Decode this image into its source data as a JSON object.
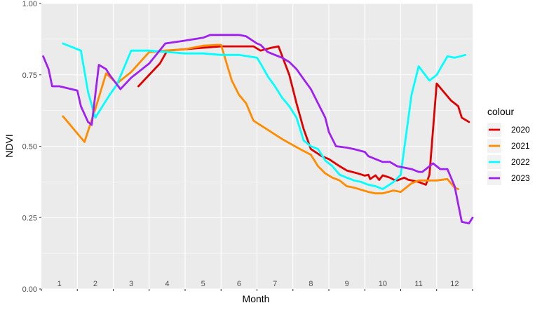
{
  "chart_data": {
    "type": "line",
    "xlabel": "Month",
    "ylabel": "NDVI",
    "xlim": [
      0.5,
      12.5
    ],
    "ylim": [
      0,
      1
    ],
    "x_ticks": [
      "1",
      "2",
      "3",
      "4",
      "5",
      "6",
      "7",
      "8",
      "9",
      "10",
      "11",
      "12"
    ],
    "y_ticks": [
      "0.00",
      "0.25",
      "0.50",
      "0.75",
      "1.00"
    ],
    "legend": {
      "title": "colour",
      "position": "right"
    },
    "grid": true,
    "series": [
      {
        "name": "2020",
        "color": "#E00000",
        "x": [
          3.2,
          3.8,
          4.0,
          5.0,
          5.5,
          6.0,
          6.3,
          6.4,
          6.6,
          6.9,
          7.1,
          7.4,
          7.5,
          7.6,
          7.8,
          8.0,
          8.3,
          8.5,
          8.8,
          9.0,
          9.3,
          9.5,
          9.6,
          9.65,
          9.8,
          9.9,
          10.0,
          10.2,
          10.3,
          10.4,
          10.6,
          10.7,
          11.0,
          11.2,
          11.3,
          11.5,
          11.7,
          11.9,
          12.0,
          12.1,
          12.2,
          12.4
        ],
        "y": [
          0.71,
          0.79,
          0.835,
          0.845,
          0.85,
          0.85,
          0.85,
          0.85,
          0.835,
          0.845,
          0.85,
          0.75,
          0.7,
          0.65,
          0.56,
          0.49,
          0.465,
          0.455,
          0.43,
          0.415,
          0.405,
          0.397,
          0.4,
          0.385,
          0.398,
          0.382,
          0.398,
          0.39,
          0.383,
          0.38,
          0.39,
          0.383,
          0.375,
          0.365,
          0.4,
          0.72,
          0.69,
          0.66,
          0.65,
          0.64,
          0.6,
          0.585
        ]
      },
      {
        "name": "2021",
        "color": "#FF8C00",
        "x": [
          1.1,
          1.7,
          2.0,
          2.3,
          2.6,
          3.0,
          3.5,
          3.95,
          4.5,
          5.0,
          5.4,
          5.5,
          5.8,
          6.0,
          6.2,
          6.4,
          7.2,
          7.7,
          8.0,
          8.2,
          8.4,
          8.6,
          8.8,
          9.0,
          9.2,
          9.6,
          9.8,
          10.0,
          10.3,
          10.5,
          10.8,
          11.0,
          11.5,
          11.8,
          12.0,
          12.1
        ],
        "y": [
          0.605,
          0.515,
          0.63,
          0.755,
          0.72,
          0.76,
          0.83,
          0.835,
          0.84,
          0.852,
          0.855,
          0.855,
          0.73,
          0.68,
          0.65,
          0.59,
          0.525,
          0.49,
          0.47,
          0.43,
          0.405,
          0.39,
          0.38,
          0.36,
          0.355,
          0.34,
          0.335,
          0.335,
          0.345,
          0.34,
          0.37,
          0.38,
          0.38,
          0.385,
          0.355,
          0.35
        ]
      },
      {
        "name": "2022",
        "color": "#00FFFF",
        "x": [
          1.1,
          1.6,
          1.8,
          2.0,
          2.4,
          2.6,
          3.0,
          3.5,
          4.0,
          4.5,
          5.0,
          5.5,
          6.0,
          6.5,
          6.6,
          6.8,
          7.0,
          7.2,
          7.4,
          7.6,
          7.8,
          8.0,
          8.2,
          8.4,
          8.6,
          8.8,
          9.0,
          9.2,
          9.4,
          9.6,
          9.8,
          10.0,
          10.3,
          10.5,
          10.8,
          11.0,
          11.3,
          11.5,
          11.8,
          12.0,
          12.3
        ],
        "y": [
          0.86,
          0.835,
          0.69,
          0.6,
          0.68,
          0.715,
          0.835,
          0.835,
          0.83,
          0.825,
          0.825,
          0.82,
          0.82,
          0.81,
          0.79,
          0.745,
          0.71,
          0.67,
          0.64,
          0.6,
          0.52,
          0.5,
          0.49,
          0.45,
          0.43,
          0.4,
          0.39,
          0.38,
          0.375,
          0.365,
          0.36,
          0.35,
          0.375,
          0.4,
          0.68,
          0.78,
          0.73,
          0.75,
          0.815,
          0.81,
          0.82
        ]
      },
      {
        "name": "2023",
        "color": "#A020F0",
        "x": [
          0.55,
          0.7,
          0.8,
          1.0,
          1.5,
          1.6,
          1.8,
          1.9,
          2.1,
          2.3,
          2.4,
          2.7,
          3.0,
          3.5,
          3.95,
          4.5,
          5.0,
          5.2,
          5.5,
          6.0,
          6.2,
          6.5,
          6.6,
          6.8,
          7.0,
          7.2,
          7.4,
          7.6,
          7.8,
          8.0,
          8.2,
          8.4,
          8.5,
          8.7,
          9.0,
          9.2,
          9.5,
          9.6,
          9.8,
          10.0,
          10.2,
          10.4,
          10.6,
          10.8,
          11.0,
          11.1,
          11.2,
          11.3,
          11.4,
          11.6,
          11.8,
          12.0,
          12.2,
          12.4,
          12.5
        ],
        "y": [
          0.815,
          0.77,
          0.71,
          0.71,
          0.695,
          0.64,
          0.585,
          0.575,
          0.785,
          0.77,
          0.75,
          0.7,
          0.74,
          0.79,
          0.86,
          0.87,
          0.88,
          0.89,
          0.89,
          0.89,
          0.885,
          0.86,
          0.855,
          0.83,
          0.82,
          0.81,
          0.795,
          0.77,
          0.735,
          0.7,
          0.65,
          0.6,
          0.55,
          0.5,
          0.495,
          0.49,
          0.48,
          0.465,
          0.455,
          0.445,
          0.445,
          0.43,
          0.425,
          0.42,
          0.41,
          0.41,
          0.42,
          0.43,
          0.44,
          0.42,
          0.42,
          0.36,
          0.235,
          0.23,
          0.25
        ]
      }
    ]
  }
}
